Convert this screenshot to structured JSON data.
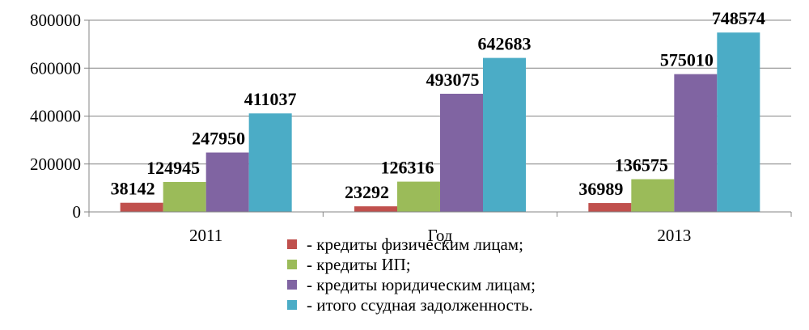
{
  "chart_data": {
    "type": "bar",
    "categories": [
      "2011",
      "Год",
      "2013"
    ],
    "series": [
      {
        "name": "- кредиты физическим лицам;",
        "color": "#C0504D",
        "values": [
          38142,
          23292,
          36989
        ]
      },
      {
        "name": "- кредиты ИП;",
        "color": "#9BBB59",
        "values": [
          124945,
          126316,
          136575
        ]
      },
      {
        "name": "- кредиты юридическим лицам;",
        "color": "#8064A2",
        "values": [
          247950,
          493075,
          575010
        ]
      },
      {
        "name": "- итого ссудная задолженность.",
        "color": "#4BACC6",
        "values": [
          411037,
          642683,
          748574
        ]
      }
    ],
    "y_ticks": [
      "0",
      "200000",
      "400000",
      "600000",
      "800000"
    ],
    "ylim": [
      0,
      800000
    ],
    "grid": true,
    "legend_position": "bottom-center",
    "data_labels": true
  }
}
